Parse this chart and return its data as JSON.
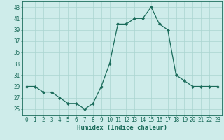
{
  "x": [
    0,
    1,
    2,
    3,
    4,
    5,
    6,
    7,
    8,
    9,
    10,
    11,
    12,
    13,
    14,
    15,
    16,
    17,
    18,
    19,
    20,
    21,
    22,
    23
  ],
  "y": [
    29,
    29,
    28,
    28,
    27,
    26,
    26,
    25,
    26,
    29,
    33,
    40,
    40,
    41,
    41,
    43,
    40,
    39,
    31,
    30,
    29,
    29,
    29,
    29
  ],
  "line_color": "#1a6b5a",
  "marker_color": "#1a6b5a",
  "bg_color": "#ceecea",
  "grid_color": "#aad4d0",
  "xlabel": "Humidex (Indice chaleur)",
  "xlim": [
    -0.5,
    23.5
  ],
  "ylim": [
    24,
    44
  ],
  "yticks": [
    25,
    27,
    29,
    31,
    33,
    35,
    37,
    39,
    41,
    43
  ],
  "xticks": [
    0,
    1,
    2,
    3,
    4,
    5,
    6,
    7,
    8,
    9,
    10,
    11,
    12,
    13,
    14,
    15,
    16,
    17,
    18,
    19,
    20,
    21,
    22,
    23
  ],
  "label_fontsize": 6.5,
  "tick_fontsize": 5.5
}
